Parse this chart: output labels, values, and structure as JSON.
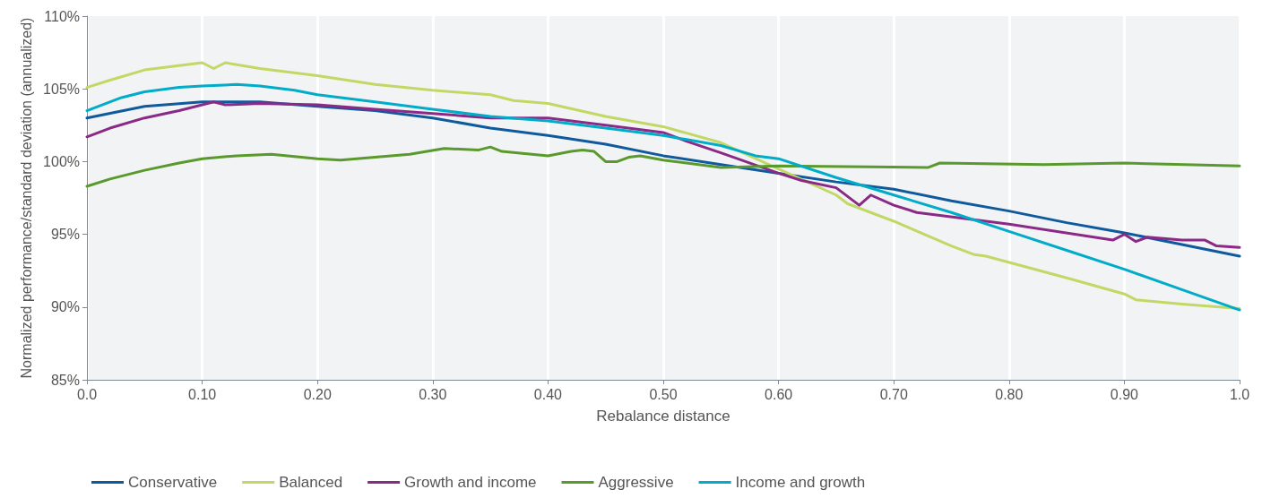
{
  "chart_data": {
    "type": "line",
    "xlabel": "Rebalance distance",
    "ylabel": "Normalized performance/standard deviation (annualized)",
    "xlim": [
      0,
      1
    ],
    "ylim": [
      85,
      110
    ],
    "xticks": [
      {
        "value": 0,
        "label": "0.0"
      },
      {
        "value": 0.1,
        "label": "0.10"
      },
      {
        "value": 0.2,
        "label": "0.20"
      },
      {
        "value": 0.3,
        "label": "0.30"
      },
      {
        "value": 0.4,
        "label": "0.40"
      },
      {
        "value": 0.5,
        "label": "0.50"
      },
      {
        "value": 0.6,
        "label": "0.60"
      },
      {
        "value": 0.7,
        "label": "0.70"
      },
      {
        "value": 0.8,
        "label": "0.80"
      },
      {
        "value": 0.9,
        "label": "0.90"
      },
      {
        "value": 1,
        "label": "1.0"
      }
    ],
    "yticks": [
      {
        "value": 85,
        "label": "85%"
      },
      {
        "value": 90,
        "label": "90%"
      },
      {
        "value": 95,
        "label": "95%"
      },
      {
        "value": 100,
        "label": "100%"
      },
      {
        "value": 105,
        "label": "105%"
      },
      {
        "value": 110,
        "label": "110%"
      }
    ],
    "grid": "x",
    "legend": "bottom",
    "marker": "none",
    "line_style": "solid",
    "series": [
      {
        "name": "Conservative",
        "color": "#0f5a9c",
        "x": [
          0,
          0.05,
          0.1,
          0.15,
          0.2,
          0.25,
          0.3,
          0.35,
          0.4,
          0.45,
          0.5,
          0.55,
          0.6,
          0.65,
          0.7,
          0.75,
          0.8,
          0.85,
          0.9,
          0.95,
          1
        ],
        "values": [
          103.0,
          103.8,
          104.1,
          104.1,
          103.8,
          103.5,
          103.0,
          102.3,
          101.8,
          101.2,
          100.4,
          99.8,
          99.2,
          98.6,
          98.1,
          97.3,
          96.6,
          95.8,
          95.1,
          94.3,
          93.5
        ]
      },
      {
        "name": "Balanced",
        "color": "#c2d865",
        "x": [
          0,
          0.02,
          0.05,
          0.1,
          0.11,
          0.12,
          0.15,
          0.2,
          0.25,
          0.3,
          0.35,
          0.37,
          0.4,
          0.45,
          0.5,
          0.55,
          0.6,
          0.65,
          0.66,
          0.7,
          0.75,
          0.77,
          0.78,
          0.85,
          0.9,
          0.91,
          0.95,
          1
        ],
        "values": [
          105.1,
          105.6,
          106.3,
          106.8,
          106.4,
          106.8,
          106.4,
          105.9,
          105.3,
          104.9,
          104.6,
          104.2,
          104.0,
          103.1,
          102.4,
          101.3,
          99.5,
          97.7,
          97.1,
          95.9,
          94.2,
          93.6,
          93.5,
          92.0,
          90.9,
          90.5,
          90.2,
          89.9
        ]
      },
      {
        "name": "Growth and income",
        "color": "#8b2a86",
        "x": [
          0,
          0.02,
          0.05,
          0.08,
          0.11,
          0.12,
          0.15,
          0.2,
          0.25,
          0.3,
          0.35,
          0.4,
          0.45,
          0.5,
          0.52,
          0.55,
          0.6,
          0.62,
          0.65,
          0.67,
          0.68,
          0.7,
          0.72,
          0.8,
          0.89,
          0.9,
          0.91,
          0.92,
          0.95,
          0.97,
          0.98,
          1
        ],
        "values": [
          101.7,
          102.3,
          103.0,
          103.5,
          104.1,
          103.9,
          104.0,
          103.9,
          103.6,
          103.3,
          103.0,
          103.0,
          102.5,
          102.0,
          101.4,
          100.6,
          99.2,
          98.7,
          98.2,
          97.0,
          97.7,
          97.0,
          96.5,
          95.7,
          94.6,
          95.0,
          94.5,
          94.8,
          94.6,
          94.6,
          94.2,
          94.1
        ]
      },
      {
        "name": "Aggressive",
        "color": "#5a9a2c",
        "x": [
          0,
          0.02,
          0.05,
          0.08,
          0.1,
          0.13,
          0.16,
          0.2,
          0.22,
          0.25,
          0.28,
          0.31,
          0.34,
          0.35,
          0.36,
          0.4,
          0.42,
          0.43,
          0.44,
          0.45,
          0.46,
          0.47,
          0.48,
          0.5,
          0.55,
          0.6,
          0.73,
          0.74,
          0.83,
          0.9,
          1
        ],
        "values": [
          98.3,
          98.8,
          99.4,
          99.9,
          100.2,
          100.4,
          100.5,
          100.2,
          100.1,
          100.3,
          100.5,
          100.9,
          100.8,
          101.0,
          100.7,
          100.4,
          100.7,
          100.8,
          100.7,
          100.0,
          100.0,
          100.3,
          100.4,
          100.1,
          99.6,
          99.7,
          99.6,
          99.9,
          99.8,
          99.9,
          99.7
        ]
      },
      {
        "name": "Income and growth",
        "color": "#00acc8",
        "x": [
          0,
          0.03,
          0.05,
          0.08,
          0.1,
          0.13,
          0.15,
          0.18,
          0.2,
          0.25,
          0.3,
          0.35,
          0.4,
          0.45,
          0.5,
          0.55,
          0.58,
          0.6,
          0.65,
          0.7,
          0.75,
          0.8,
          0.85,
          0.9,
          0.95,
          1
        ],
        "values": [
          103.5,
          104.4,
          104.8,
          105.1,
          105.2,
          105.3,
          105.2,
          104.9,
          104.6,
          104.1,
          103.6,
          103.1,
          102.8,
          102.3,
          101.8,
          101.1,
          100.4,
          100.2,
          98.9,
          97.7,
          96.5,
          95.2,
          93.9,
          92.6,
          91.2,
          89.8
        ]
      }
    ]
  }
}
